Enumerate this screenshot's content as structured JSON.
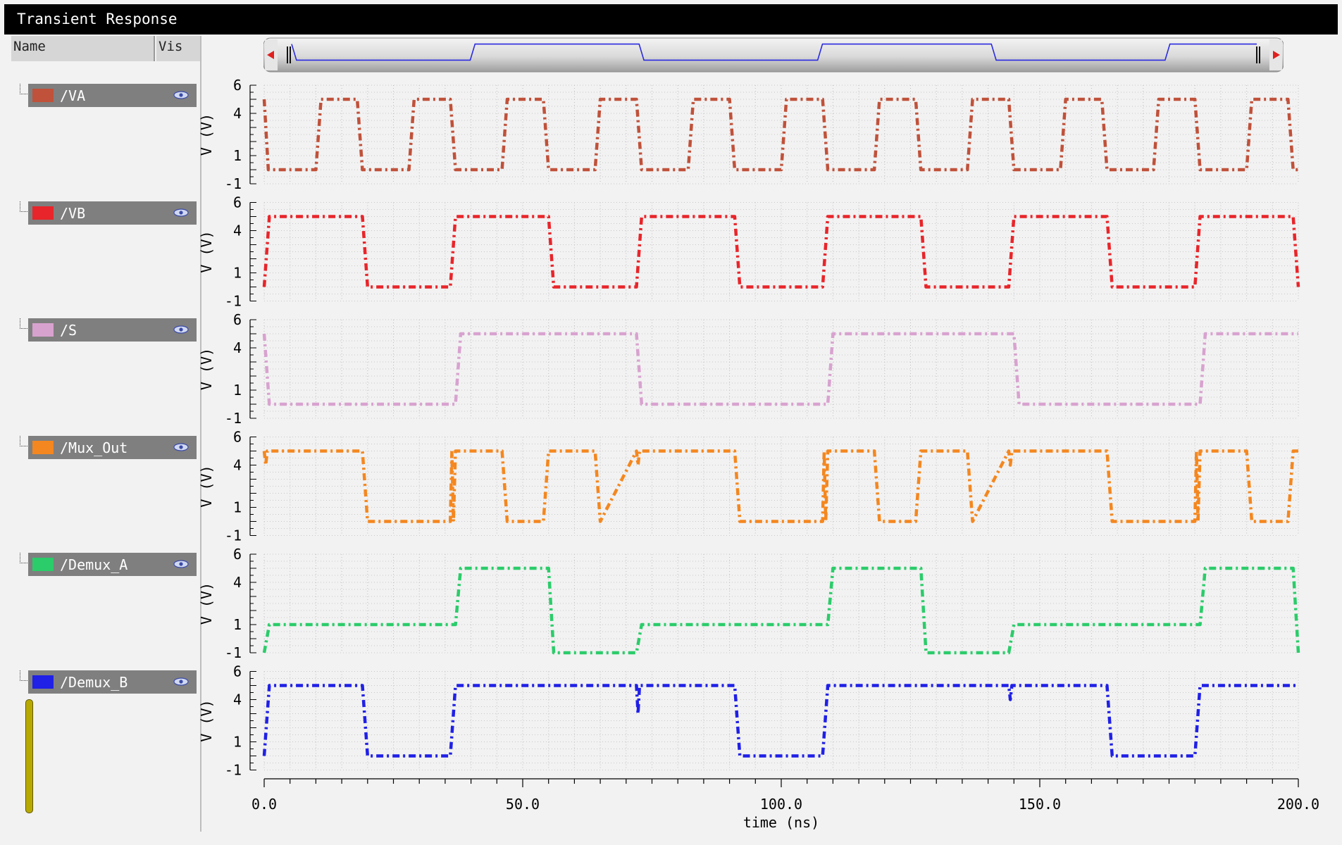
{
  "window": {
    "title": "Transient Response"
  },
  "columns": {
    "name": "Name",
    "vis": "Vis"
  },
  "signals": [
    {
      "name": "/VA",
      "color": "#c0513a"
    },
    {
      "name": "/VB",
      "color": "#e8252a"
    },
    {
      "name": "/S",
      "color": "#d8a2cf"
    },
    {
      "name": "/Mux_Out",
      "color": "#f4871f"
    },
    {
      "name": "/Demux_A",
      "color": "#2bcc6a"
    },
    {
      "name": "/Demux_B",
      "color": "#2020e6"
    }
  ],
  "chart_data": {
    "type": "line",
    "xlabel": "time (ns)",
    "xlim": [
      0,
      200
    ],
    "x_ticks": [
      "0.0",
      "50.0",
      "100.0",
      "150.0",
      "200.0"
    ],
    "ylabel": "V (V)",
    "ylim": [
      -1,
      6
    ],
    "y_ticks": [
      "6",
      "4",
      "1",
      "-1"
    ],
    "grid": true,
    "minimap_color": "#2a2ae0",
    "series": [
      {
        "name": "/VA",
        "color": "#c0513a",
        "x": [
          0,
          0.8,
          10,
          11,
          18,
          19,
          28,
          29,
          36,
          37,
          46,
          47,
          54,
          55,
          64,
          65,
          72,
          73,
          82,
          83,
          90,
          91,
          100,
          101,
          108,
          109,
          118,
          119,
          126,
          127,
          136,
          137,
          144,
          145,
          154,
          155,
          162,
          163,
          172,
          173,
          180,
          181,
          190,
          191,
          198,
          199,
          200
        ],
        "y": [
          5,
          0,
          0,
          5,
          5,
          0,
          0,
          5,
          5,
          0,
          0,
          5,
          5,
          0,
          0,
          5,
          5,
          0,
          0,
          5,
          5,
          0,
          0,
          5,
          5,
          0,
          0,
          5,
          5,
          0,
          0,
          5,
          5,
          0,
          0,
          5,
          5,
          0,
          0,
          5,
          5,
          0,
          0,
          5,
          5,
          0,
          0
        ]
      },
      {
        "name": "/VB",
        "color": "#e8252a",
        "x": [
          0,
          1,
          19,
          20,
          36,
          37,
          55,
          56,
          72,
          73,
          91,
          92,
          108,
          109,
          127,
          128,
          144,
          145,
          163,
          164,
          180,
          181,
          199,
          200
        ],
        "y": [
          0,
          5,
          5,
          0,
          0,
          5,
          5,
          0,
          0,
          5,
          5,
          0,
          0,
          5,
          5,
          0,
          0,
          5,
          5,
          0,
          0,
          5,
          5,
          0
        ]
      },
      {
        "name": "/S",
        "color": "#d8a2cf",
        "x": [
          0,
          1,
          37,
          38,
          72,
          73,
          109,
          110,
          145,
          146,
          181,
          182,
          200
        ],
        "y": [
          5,
          0,
          0,
          5,
          5,
          0,
          0,
          5,
          5,
          0,
          0,
          5,
          5
        ]
      },
      {
        "name": "/Mux_Out",
        "color": "#f4871f",
        "x": [
          0,
          0.3,
          0.6,
          1,
          19,
          20,
          36,
          36.3,
          36.6,
          37,
          46,
          47,
          54,
          55,
          64,
          65,
          72,
          72.3,
          72.6,
          73,
          91,
          92,
          108,
          108.3,
          108.6,
          109,
          118,
          119,
          126,
          127,
          136,
          137,
          144,
          144.3,
          144.6,
          145,
          163,
          164,
          180,
          180.3,
          180.6,
          181,
          190,
          191,
          198,
          199,
          200
        ],
        "y": [
          5,
          4,
          5,
          5,
          5,
          0,
          0,
          5,
          0,
          5,
          5,
          0,
          0,
          5,
          5,
          0,
          5,
          4,
          5,
          5,
          5,
          0,
          0,
          5,
          0,
          5,
          5,
          0,
          0,
          5,
          5,
          0,
          5,
          4,
          5,
          5,
          5,
          0,
          0,
          5,
          0,
          5,
          5,
          0,
          0,
          5,
          5
        ]
      },
      {
        "name": "/Demux_A",
        "color": "#2bcc6a",
        "x": [
          0,
          1,
          37,
          38,
          55,
          56,
          72,
          73,
          109,
          110,
          127,
          128,
          144,
          145,
          181,
          182,
          199,
          200
        ],
        "y": [
          -1,
          1,
          1,
          5,
          5,
          -1,
          -1,
          1,
          1,
          5,
          5,
          -1,
          -1,
          1,
          1,
          5,
          5,
          -1
        ]
      },
      {
        "name": "/Demux_B",
        "color": "#2020e6",
        "x": [
          0,
          1,
          19,
          20,
          36,
          37,
          72,
          72.3,
          72.6,
          91,
          92,
          108,
          109,
          144,
          144.3,
          144.6,
          145,
          163,
          164,
          180,
          181,
          200
        ],
        "y": [
          0,
          5,
          5,
          0,
          0,
          5,
          5,
          3,
          5,
          5,
          0,
          0,
          5,
          5,
          4,
          5,
          5,
          5,
          0,
          0,
          5,
          5
        ]
      }
    ]
  }
}
